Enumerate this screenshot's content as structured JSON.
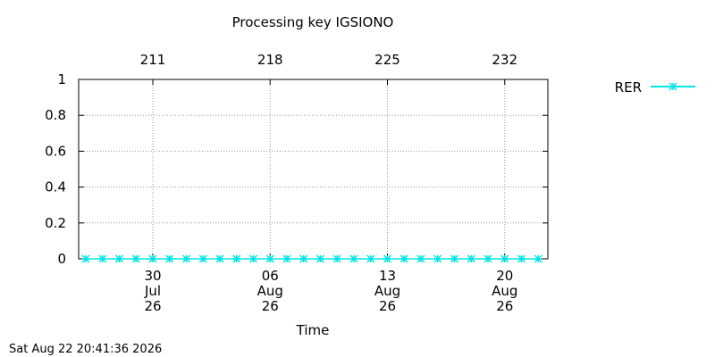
{
  "chart_data": {
    "type": "line",
    "title": "Processing key IGSIONO",
    "xlabel": "Time",
    "ylabel": "",
    "ylim": [
      0,
      1
    ],
    "yticks": [
      "0",
      "0.2",
      "0.4",
      "0.6",
      "0.8",
      "1"
    ],
    "ytick_values": [
      0,
      0.2,
      0.4,
      0.6,
      0.8,
      1
    ],
    "x_range": [
      "2026-07-26",
      "2026-08-23"
    ],
    "xticks_bottom": [
      {
        "date": "2026-07-30",
        "day": "30",
        "month": "Jul",
        "year": "26"
      },
      {
        "date": "2026-08-06",
        "day": "06",
        "month": "Aug",
        "year": "26"
      },
      {
        "date": "2026-08-13",
        "day": "13",
        "month": "Aug",
        "year": "26"
      },
      {
        "date": "2026-08-20",
        "day": "20",
        "month": "Aug",
        "year": "26"
      }
    ],
    "xticks_top": [
      {
        "date": "2026-07-30",
        "label": "211"
      },
      {
        "date": "2026-08-06",
        "label": "218"
      },
      {
        "date": "2026-08-13",
        "label": "225"
      },
      {
        "date": "2026-08-20",
        "label": "232"
      }
    ],
    "grid": true,
    "legend_position": "top-right",
    "series": [
      {
        "name": "RER",
        "color": "#00e5e5",
        "marker": "star",
        "x": [
          "2026-07-26",
          "2026-07-27",
          "2026-07-28",
          "2026-07-29",
          "2026-07-30",
          "2026-07-31",
          "2026-08-01",
          "2026-08-02",
          "2026-08-03",
          "2026-08-04",
          "2026-08-05",
          "2026-08-06",
          "2026-08-07",
          "2026-08-08",
          "2026-08-09",
          "2026-08-10",
          "2026-08-11",
          "2026-08-12",
          "2026-08-13",
          "2026-08-14",
          "2026-08-15",
          "2026-08-16",
          "2026-08-17",
          "2026-08-18",
          "2026-08-19",
          "2026-08-20",
          "2026-08-21",
          "2026-08-22"
        ],
        "values": [
          0,
          0,
          0,
          0,
          0,
          0,
          0,
          0,
          0,
          0,
          0,
          0,
          0,
          0,
          0,
          0,
          0,
          0,
          0,
          0,
          0,
          0,
          0,
          0,
          0,
          0,
          0,
          0
        ]
      }
    ]
  },
  "footer": {
    "timestamp": "Sat Aug 22 20:41:36 2026"
  }
}
